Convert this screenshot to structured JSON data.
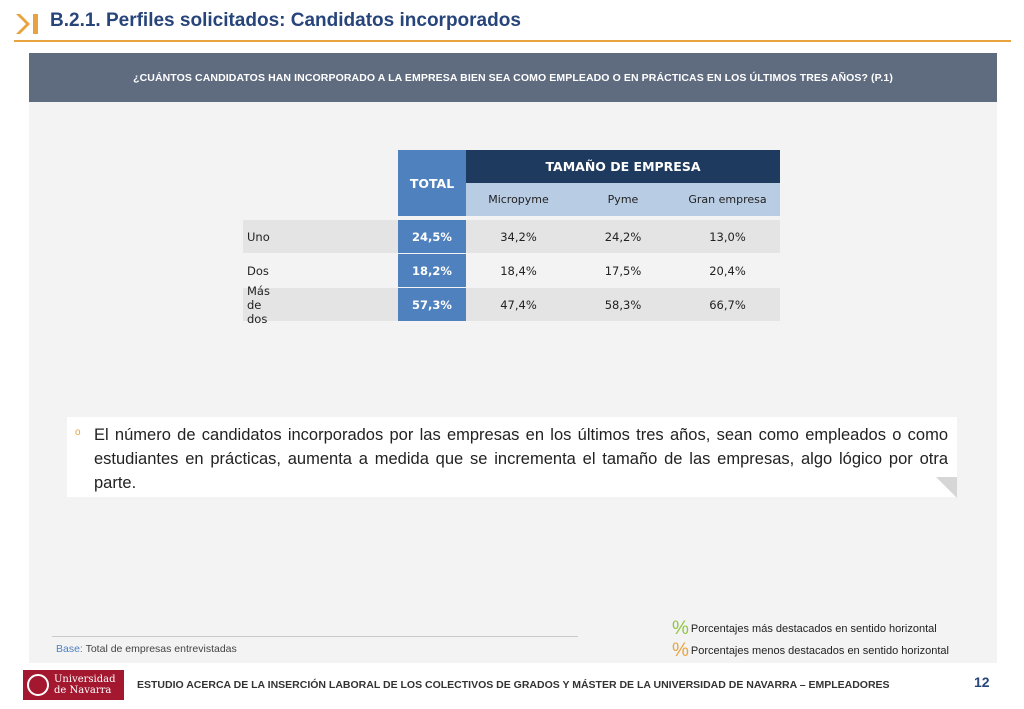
{
  "header": {
    "title": "B.2.1. Perfiles solicitados: Candidatos incorporados",
    "accent_color": "#e8a33e"
  },
  "question": {
    "text": "¿CUÁNTOS CANDIDATOS HAN INCORPORADO A LA EMPRESA BIEN SEA COMO EMPLEADO O EN PRÁCTICAS EN LOS ÚLTIMOS TRES AÑOS? (P.1)"
  },
  "table": {
    "total_header": "TOTAL",
    "group_header": "TAMAÑO DE EMPRESA",
    "sub_headers": [
      "Micropyme",
      "Pyme",
      "Gran empresa"
    ],
    "rows": [
      {
        "label": "Uno",
        "total": "24,5%",
        "values": [
          "34,2%",
          "24,2%",
          "13,0%"
        ]
      },
      {
        "label": "Dos",
        "total": "18,2%",
        "values": [
          "18,4%",
          "17,5%",
          "20,4%"
        ]
      },
      {
        "label": "Más de dos",
        "total": "57,3%",
        "values": [
          "47,4%",
          "58,3%",
          "66,7%"
        ]
      }
    ]
  },
  "note": {
    "bullet": "o",
    "text": "El número de candidatos incorporados por las empresas en los últimos tres años, sean como empleados o como estudiantes en prácticas, aumenta a medida que se incrementa el tamaño de las empresas, algo lógico por otra parte."
  },
  "legend": {
    "items": [
      {
        "symbol": "%",
        "color": "#8dc63f",
        "text": "Porcentajes más destacados en sentido horizontal"
      },
      {
        "symbol": "%",
        "color": "#e8a33e",
        "text": "Porcentajes menos destacados en sentido horizontal"
      }
    ]
  },
  "base": {
    "label": "Base:",
    "text": "Total de empresas entrevistadas"
  },
  "footer": {
    "university_line1": "Universidad",
    "university_line2": "de Navarra",
    "study_title": "ESTUDIO ACERCA DE LA INSERCIÓN LABORAL DE LOS COLECTIVOS DE GRADOS Y MÁSTER DE LA UNIVERSIDAD DE NAVARRA – EMPLEADORES",
    "page_number": "12"
  }
}
